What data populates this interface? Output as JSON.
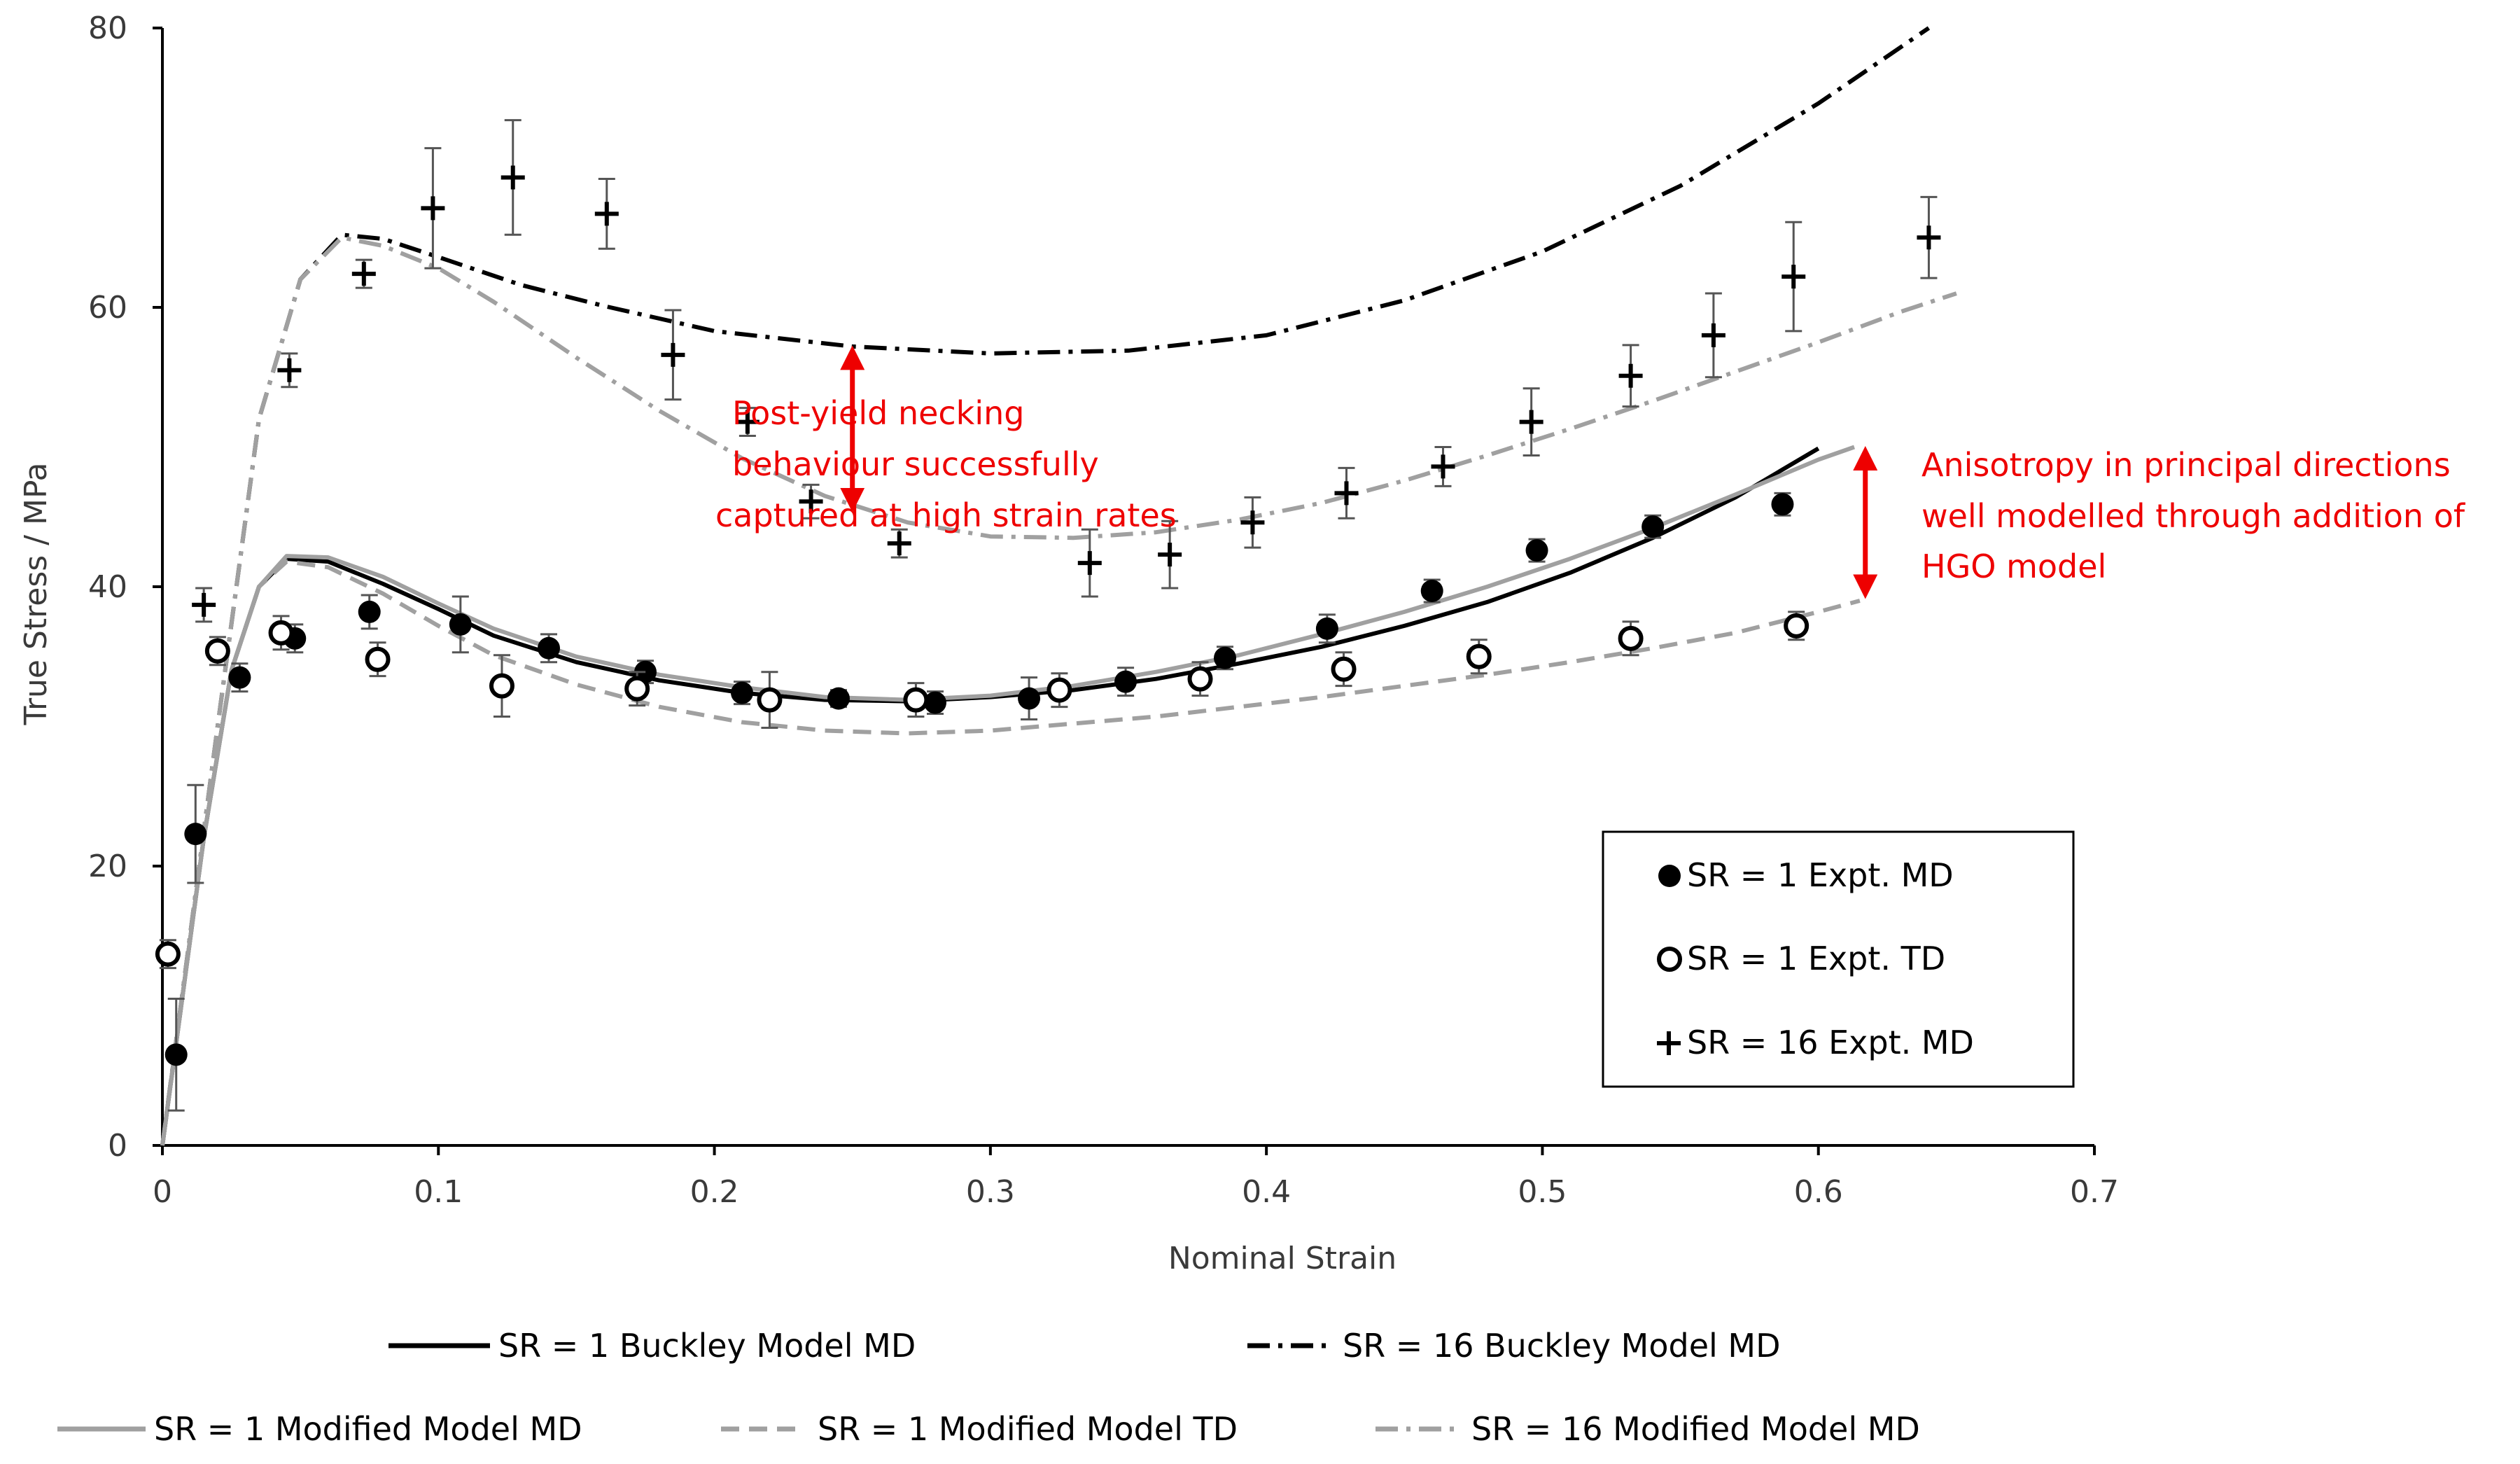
{
  "chart_data": {
    "type": "scatter",
    "xlabel": "Nominal Strain",
    "ylabel": "True Stress / MPa",
    "xlim": [
      0,
      0.7
    ],
    "ylim": [
      0,
      80
    ],
    "x_ticks": [
      0,
      0.1,
      0.2,
      0.3,
      0.4,
      0.5,
      0.6,
      0.7
    ],
    "x_tick_labels": [
      "0",
      "0.1",
      "0.2",
      "0.3",
      "0.4",
      "0.5",
      "0.6",
      "0.7"
    ],
    "y_ticks": [
      0,
      20,
      40,
      60,
      80
    ],
    "y_tick_labels": [
      "0",
      "20",
      "40",
      "60",
      "80"
    ],
    "grid": false,
    "experimental_series": [
      {
        "name": "SR = 1 Expt. MD",
        "marker": "filled-circle",
        "points": [
          {
            "x": 0.005,
            "y": 6.5,
            "err": 4.0
          },
          {
            "x": 0.012,
            "y": 22.3,
            "err": 3.5
          },
          {
            "x": 0.028,
            "y": 33.5,
            "err": 1.0
          },
          {
            "x": 0.048,
            "y": 36.3,
            "err": 1.0
          },
          {
            "x": 0.075,
            "y": 38.2,
            "err": 1.2
          },
          {
            "x": 0.108,
            "y": 37.3,
            "err": 2.0
          },
          {
            "x": 0.14,
            "y": 35.6,
            "err": 1.0
          },
          {
            "x": 0.175,
            "y": 33.9,
            "err": 0.8
          },
          {
            "x": 0.21,
            "y": 32.4,
            "err": 0.8
          },
          {
            "x": 0.245,
            "y": 32.0,
            "err": 0.6
          },
          {
            "x": 0.28,
            "y": 31.7,
            "err": 0.8
          },
          {
            "x": 0.314,
            "y": 32.0,
            "err": 1.5
          },
          {
            "x": 0.349,
            "y": 33.2,
            "err": 1.0
          },
          {
            "x": 0.385,
            "y": 34.9,
            "err": 0.8
          },
          {
            "x": 0.422,
            "y": 37.0,
            "err": 1.0
          },
          {
            "x": 0.46,
            "y": 39.7,
            "err": 0.8
          },
          {
            "x": 0.498,
            "y": 42.6,
            "err": 0.8
          },
          {
            "x": 0.54,
            "y": 44.3,
            "err": 0.8
          },
          {
            "x": 0.587,
            "y": 45.9,
            "err": 0.8
          }
        ]
      },
      {
        "name": "SR = 1 Expt. TD",
        "marker": "open-circle",
        "points": [
          {
            "x": 0.002,
            "y": 13.7,
            "err": 1.0
          },
          {
            "x": 0.02,
            "y": 35.4,
            "err": 1.0
          },
          {
            "x": 0.043,
            "y": 36.7,
            "err": 1.2
          },
          {
            "x": 0.078,
            "y": 34.8,
            "err": 1.2
          },
          {
            "x": 0.123,
            "y": 32.9,
            "err": 2.2
          },
          {
            "x": 0.172,
            "y": 32.7,
            "err": 1.2
          },
          {
            "x": 0.22,
            "y": 31.9,
            "err": 2.0
          },
          {
            "x": 0.273,
            "y": 31.9,
            "err": 1.2
          },
          {
            "x": 0.325,
            "y": 32.6,
            "err": 1.2
          },
          {
            "x": 0.376,
            "y": 33.4,
            "err": 1.2
          },
          {
            "x": 0.428,
            "y": 34.1,
            "err": 1.2
          },
          {
            "x": 0.477,
            "y": 35.0,
            "err": 1.2
          },
          {
            "x": 0.532,
            "y": 36.3,
            "err": 1.2
          },
          {
            "x": 0.592,
            "y": 37.2,
            "err": 1.0
          }
        ]
      },
      {
        "name": "SR = 16 Expt. MD",
        "marker": "plus",
        "points": [
          {
            "x": 0.015,
            "y": 38.7,
            "err": 1.2
          },
          {
            "x": 0.046,
            "y": 55.5,
            "err": 1.2
          },
          {
            "x": 0.073,
            "y": 62.4,
            "err": 1.0
          },
          {
            "x": 0.098,
            "y": 67.1,
            "err": 4.3
          },
          {
            "x": 0.127,
            "y": 69.3,
            "err": 4.1
          },
          {
            "x": 0.161,
            "y": 66.7,
            "err": 2.5
          },
          {
            "x": 0.185,
            "y": 56.6,
            "err": 3.2
          },
          {
            "x": 0.212,
            "y": 51.8,
            "err": 1.0
          },
          {
            "x": 0.235,
            "y": 46.1,
            "err": 1.2
          },
          {
            "x": 0.267,
            "y": 43.1,
            "err": 1.0
          },
          {
            "x": 0.336,
            "y": 41.7,
            "err": 2.4
          },
          {
            "x": 0.365,
            "y": 42.3,
            "err": 2.4
          },
          {
            "x": 0.395,
            "y": 44.6,
            "err": 1.8
          },
          {
            "x": 0.429,
            "y": 46.7,
            "err": 1.8
          },
          {
            "x": 0.464,
            "y": 48.6,
            "err": 1.4
          },
          {
            "x": 0.496,
            "y": 51.8,
            "err": 2.4
          },
          {
            "x": 0.532,
            "y": 55.1,
            "err": 2.2
          },
          {
            "x": 0.562,
            "y": 58.0,
            "err": 3.0
          },
          {
            "x": 0.591,
            "y": 62.2,
            "err": 3.9
          },
          {
            "x": 0.64,
            "y": 65.0,
            "err": 2.9
          }
        ]
      }
    ],
    "model_series": [
      {
        "name": "SR = 1 Buckley Model MD",
        "color": "#000000",
        "dash": "solid",
        "points": [
          [
            0,
            0
          ],
          [
            0.015,
            22
          ],
          [
            0.025,
            34
          ],
          [
            0.035,
            40
          ],
          [
            0.045,
            42
          ],
          [
            0.06,
            41.8
          ],
          [
            0.08,
            40.2
          ],
          [
            0.1,
            38.4
          ],
          [
            0.12,
            36.5
          ],
          [
            0.15,
            34.6
          ],
          [
            0.18,
            33.3
          ],
          [
            0.21,
            32.4
          ],
          [
            0.24,
            31.9
          ],
          [
            0.27,
            31.8
          ],
          [
            0.3,
            32.1
          ],
          [
            0.33,
            32.6
          ],
          [
            0.36,
            33.4
          ],
          [
            0.39,
            34.5
          ],
          [
            0.42,
            35.7
          ],
          [
            0.45,
            37.2
          ],
          [
            0.48,
            38.9
          ],
          [
            0.51,
            41.0
          ],
          [
            0.54,
            43.5
          ],
          [
            0.57,
            46.4
          ],
          [
            0.6,
            49.9
          ]
        ]
      },
      {
        "name": "SR = 16 Buckley Model MD",
        "color": "#000000",
        "dash": "dash-dot",
        "points": [
          [
            0,
            0
          ],
          [
            0.02,
            30
          ],
          [
            0.035,
            52
          ],
          [
            0.05,
            62
          ],
          [
            0.065,
            65.2
          ],
          [
            0.08,
            64.9
          ],
          [
            0.1,
            63.6
          ],
          [
            0.13,
            61.6
          ],
          [
            0.16,
            60.1
          ],
          [
            0.2,
            58.3
          ],
          [
            0.25,
            57.2
          ],
          [
            0.3,
            56.7
          ],
          [
            0.35,
            56.9
          ],
          [
            0.4,
            58.0
          ],
          [
            0.45,
            60.5
          ],
          [
            0.5,
            64.0
          ],
          [
            0.55,
            68.7
          ],
          [
            0.6,
            74.6
          ],
          [
            0.64,
            80.0
          ]
        ]
      },
      {
        "name": "SR = 1 Modified Model MD",
        "color": "#a0a0a0",
        "dash": "solid",
        "points": [
          [
            0,
            0
          ],
          [
            0.015,
            22
          ],
          [
            0.025,
            34
          ],
          [
            0.035,
            40
          ],
          [
            0.045,
            42.2
          ],
          [
            0.06,
            42.1
          ],
          [
            0.08,
            40.7
          ],
          [
            0.1,
            38.8
          ],
          [
            0.12,
            37.0
          ],
          [
            0.15,
            35.0
          ],
          [
            0.18,
            33.7
          ],
          [
            0.21,
            32.8
          ],
          [
            0.24,
            32.1
          ],
          [
            0.27,
            31.9
          ],
          [
            0.3,
            32.2
          ],
          [
            0.33,
            32.9
          ],
          [
            0.36,
            33.9
          ],
          [
            0.39,
            35.1
          ],
          [
            0.42,
            36.6
          ],
          [
            0.45,
            38.2
          ],
          [
            0.48,
            40.0
          ],
          [
            0.51,
            42.0
          ],
          [
            0.54,
            44.2
          ],
          [
            0.57,
            46.6
          ],
          [
            0.6,
            49.1
          ],
          [
            0.613,
            50.0
          ]
        ]
      },
      {
        "name": "SR = 1 Modified Model TD",
        "color": "#a0a0a0",
        "dash": "dash",
        "points": [
          [
            0,
            0
          ],
          [
            0.015,
            22
          ],
          [
            0.025,
            34
          ],
          [
            0.035,
            40
          ],
          [
            0.045,
            41.8
          ],
          [
            0.06,
            41.4
          ],
          [
            0.08,
            39.5
          ],
          [
            0.1,
            37.2
          ],
          [
            0.12,
            35.1
          ],
          [
            0.15,
            33.0
          ],
          [
            0.18,
            31.4
          ],
          [
            0.21,
            30.3
          ],
          [
            0.24,
            29.7
          ],
          [
            0.27,
            29.5
          ],
          [
            0.3,
            29.7
          ],
          [
            0.33,
            30.2
          ],
          [
            0.36,
            30.7
          ],
          [
            0.39,
            31.4
          ],
          [
            0.42,
            32.1
          ],
          [
            0.45,
            32.9
          ],
          [
            0.48,
            33.7
          ],
          [
            0.51,
            34.6
          ],
          [
            0.54,
            35.6
          ],
          [
            0.57,
            36.7
          ],
          [
            0.6,
            38.2
          ],
          [
            0.615,
            39.0
          ]
        ]
      },
      {
        "name": "SR = 16 Modified Model MD",
        "color": "#a0a0a0",
        "dash": "dash-dot",
        "points": [
          [
            0,
            0
          ],
          [
            0.02,
            30
          ],
          [
            0.035,
            52
          ],
          [
            0.05,
            62
          ],
          [
            0.065,
            65.0
          ],
          [
            0.08,
            64.4
          ],
          [
            0.1,
            62.8
          ],
          [
            0.12,
            60.4
          ],
          [
            0.15,
            56.4
          ],
          [
            0.18,
            52.6
          ],
          [
            0.21,
            49.2
          ],
          [
            0.24,
            46.5
          ],
          [
            0.27,
            44.6
          ],
          [
            0.3,
            43.6
          ],
          [
            0.33,
            43.5
          ],
          [
            0.36,
            43.9
          ],
          [
            0.39,
            44.8
          ],
          [
            0.42,
            46.0
          ],
          [
            0.45,
            47.6
          ],
          [
            0.48,
            49.4
          ],
          [
            0.51,
            51.3
          ],
          [
            0.54,
            53.3
          ],
          [
            0.57,
            55.4
          ],
          [
            0.6,
            57.5
          ],
          [
            0.63,
            59.7
          ],
          [
            0.65,
            61.0
          ]
        ]
      }
    ],
    "annotations": [
      {
        "lines": [
          "Post-yield necking",
          "behaviour successfully",
          "captured at high strain rates"
        ],
        "color": "#ee0000"
      },
      {
        "lines": [
          "Anisotropy in principal directions",
          "well modelled through addition of",
          "HGO model"
        ],
        "color": "#ee0000"
      }
    ],
    "arrows": [
      {
        "x": 0.25,
        "y1": 57.2,
        "y2": 45.4,
        "color": "#ee0000"
      },
      {
        "x": 0.617,
        "y1": 50.0,
        "y2": 39.2,
        "color": "#ee0000"
      }
    ],
    "legend_inside_position": "bottom-right",
    "legend_bottom_position": "bottom"
  }
}
